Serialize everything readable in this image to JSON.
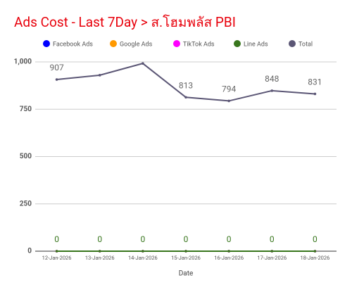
{
  "chart_data": {
    "type": "line",
    "title": "Ads Cost - Last 7Day > ส.โฮมพลัส PBI",
    "x_label": "Date",
    "categories": [
      "12-Jan-2026",
      "13-Jan-2026",
      "14-Jan-2026",
      "15-Jan-2026",
      "16-Jan-2026",
      "17-Jan-2026",
      "18-Jan-2026"
    ],
    "series": [
      {
        "name": "Facebook Ads",
        "color": "#0000ff",
        "values": [
          0,
          0,
          0,
          0,
          0,
          0,
          0
        ]
      },
      {
        "name": "Google Ads",
        "color": "#ff9900",
        "values": [
          0,
          0,
          0,
          0,
          0,
          0,
          0
        ]
      },
      {
        "name": "TikTok Ads",
        "color": "#ff00ff",
        "values": [
          0,
          0,
          0,
          0,
          0,
          0,
          0
        ]
      },
      {
        "name": "Line Ads",
        "color": "#38761d",
        "values": [
          0,
          0,
          0,
          0,
          0,
          0,
          0
        ],
        "value_labels": [
          "0",
          "0",
          "0",
          "0",
          "0",
          "0",
          "0"
        ]
      },
      {
        "name": "Total",
        "color": "#5b5675",
        "values": [
          907,
          930,
          992,
          813,
          794,
          848,
          831
        ],
        "value_labels": [
          "907",
          null,
          null,
          "813",
          "794",
          "848",
          "831"
        ]
      }
    ],
    "ylim": [
      0,
      1000
    ],
    "yticks": [
      0,
      250,
      500,
      750,
      {
        "value": 1000,
        "label": "1,000"
      }
    ],
    "grid": true
  }
}
